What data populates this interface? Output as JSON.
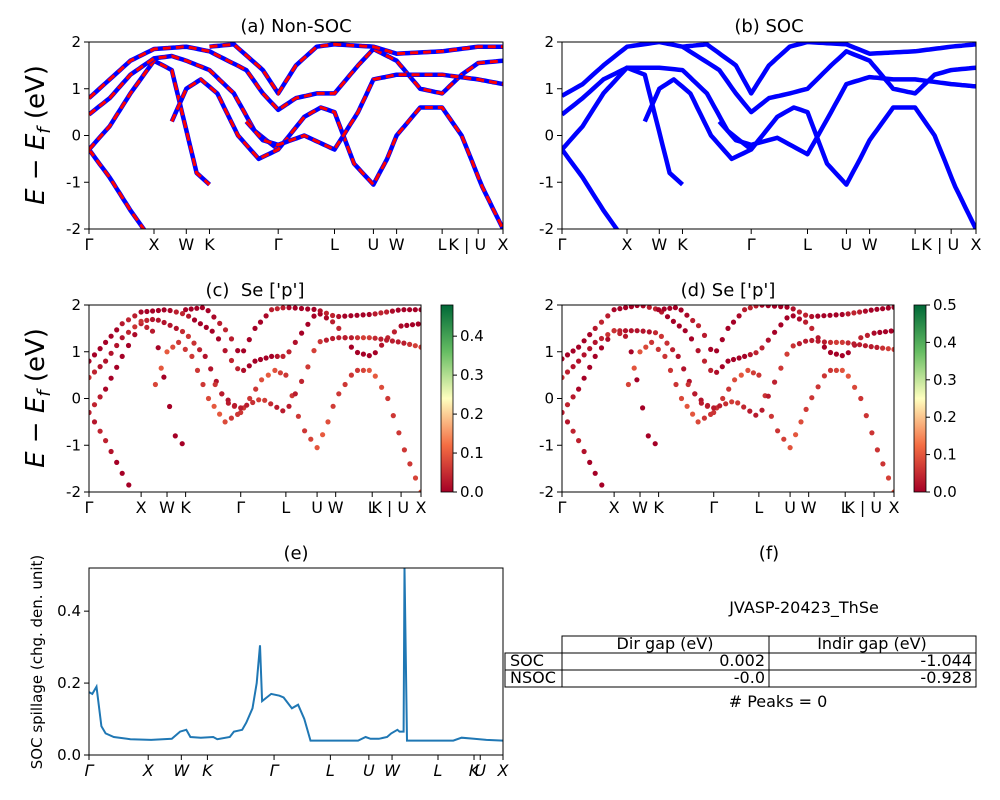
{
  "figure": {
    "id_text": "JVASP-20423_ThSe",
    "peaks_text": "# Peaks = 0"
  },
  "kpath_ticks": {
    "a": [
      {
        "label": "Γ",
        "x": 0
      },
      {
        "label": "X",
        "x": 0.157
      },
      {
        "label": "W",
        "x": 0.235
      },
      {
        "label": "K",
        "x": 0.291
      },
      {
        "label": "Γ",
        "x": 0.457
      },
      {
        "label": "L",
        "x": 0.593
      },
      {
        "label": "U",
        "x": 0.687
      },
      {
        "label": "W",
        "x": 0.743
      },
      {
        "label": "L",
        "x": 0.853
      },
      {
        "label": "K | U",
        "x": 0.94
      },
      {
        "label": "X",
        "x": 1.0
      }
    ],
    "c": [
      {
        "label": "Γ",
        "x": 0
      },
      {
        "label": "X",
        "x": 0.157
      },
      {
        "label": "W",
        "x": 0.235
      },
      {
        "label": "K",
        "x": 0.291
      },
      {
        "label": "Γ",
        "x": 0.457
      },
      {
        "label": "L",
        "x": 0.593
      },
      {
        "label": "U",
        "x": 0.687
      },
      {
        "label": "W",
        "x": 0.743
      },
      {
        "label": "L",
        "x": 0.853
      },
      {
        "label": "K | U",
        "x": 0.94
      },
      {
        "label": "X",
        "x": 1.0
      }
    ],
    "e": [
      {
        "label": "Γ",
        "x": 0
      },
      {
        "label": "X",
        "x": 0.143
      },
      {
        "label": "W",
        "x": 0.223
      },
      {
        "label": "K",
        "x": 0.286
      },
      {
        "label": "Γ",
        "x": 0.447
      },
      {
        "label": "L",
        "x": 0.583
      },
      {
        "label": "U",
        "x": 0.676
      },
      {
        "label": "W",
        "x": 0.732
      },
      {
        "label": "L",
        "x": 0.843
      },
      {
        "label": "K",
        "x": 0.93
      },
      {
        "label": "U",
        "x": 0.945
      },
      {
        "label": "X",
        "x": 1.0
      }
    ]
  },
  "chart_data": [
    {
      "panel": "a",
      "type": "line",
      "title": "(a) Non-SOC",
      "ylabel": "E − E_f (eV)",
      "ylim": [
        -2,
        2
      ],
      "yticks": [
        -2,
        -1,
        0,
        1,
        2
      ],
      "series": [
        {
          "color": "#0000ff",
          "style": "solid"
        },
        {
          "color": "#ff0000",
          "style": "dashed"
        }
      ],
      "bands": [
        [
          [
            0,
            -0.3
          ],
          [
            0.05,
            -0.9
          ],
          [
            0.1,
            -1.6
          ],
          [
            0.14,
            -2.1
          ]
        ],
        [
          [
            0,
            -0.3
          ],
          [
            0.05,
            0.2
          ],
          [
            0.1,
            0.9
          ],
          [
            0.157,
            1.6
          ],
          [
            0.2,
            1.4
          ],
          [
            0.26,
            -0.8
          ],
          [
            0.291,
            -1.05
          ]
        ],
        [
          [
            0,
            0.45
          ],
          [
            0.05,
            0.8
          ],
          [
            0.1,
            1.3
          ],
          [
            0.157,
            1.65
          ],
          [
            0.2,
            1.7
          ],
          [
            0.235,
            1.6
          ],
          [
            0.291,
            1.4
          ],
          [
            0.35,
            0.9
          ],
          [
            0.4,
            0.1
          ],
          [
            0.457,
            -0.3
          ]
        ],
        [
          [
            0,
            0.8
          ],
          [
            0.05,
            1.2
          ],
          [
            0.1,
            1.6
          ],
          [
            0.157,
            1.85
          ],
          [
            0.235,
            1.9
          ],
          [
            0.291,
            1.8
          ],
          [
            0.38,
            1.4
          ],
          [
            0.42,
            0.9
          ],
          [
            0.457,
            0.55
          ],
          [
            0.5,
            0.8
          ],
          [
            0.55,
            0.9
          ],
          [
            0.593,
            0.9
          ],
          [
            0.65,
            1.5
          ],
          [
            0.687,
            1.85
          ],
          [
            0.743,
            1.6
          ],
          [
            0.8,
            1.0
          ],
          [
            0.853,
            0.9
          ],
          [
            0.9,
            1.3
          ],
          [
            0.94,
            1.55
          ],
          [
            1.0,
            1.6
          ]
        ],
        [
          [
            0.291,
            1.9
          ],
          [
            0.35,
            1.95
          ],
          [
            0.42,
            1.4
          ],
          [
            0.457,
            0.9
          ],
          [
            0.5,
            1.5
          ],
          [
            0.55,
            1.9
          ],
          [
            0.593,
            1.95
          ],
          [
            0.687,
            1.9
          ],
          [
            0.743,
            1.75
          ],
          [
            0.853,
            1.8
          ],
          [
            0.94,
            1.9
          ],
          [
            1.0,
            1.9
          ]
        ],
        [
          [
            0.2,
            0.3
          ],
          [
            0.235,
            1.0
          ],
          [
            0.27,
            1.2
          ],
          [
            0.31,
            0.9
          ],
          [
            0.36,
            0.0
          ],
          [
            0.41,
            -0.5
          ],
          [
            0.457,
            -0.3
          ],
          [
            0.52,
            0.4
          ],
          [
            0.56,
            0.6
          ],
          [
            0.593,
            0.5
          ],
          [
            0.64,
            -0.6
          ],
          [
            0.687,
            -1.05
          ],
          [
            0.72,
            -0.5
          ],
          [
            0.743,
            0.0
          ],
          [
            0.8,
            0.6
          ],
          [
            0.853,
            0.6
          ],
          [
            0.9,
            0.0
          ],
          [
            0.95,
            -1.1
          ],
          [
            1.0,
            -2.0
          ]
        ],
        [
          [
            0.38,
            0.3
          ],
          [
            0.42,
            -0.1
          ],
          [
            0.457,
            -0.2
          ],
          [
            0.52,
            0.0
          ],
          [
            0.593,
            -0.3
          ],
          [
            0.65,
            0.5
          ],
          [
            0.687,
            1.2
          ],
          [
            0.743,
            1.3
          ],
          [
            0.8,
            1.3
          ],
          [
            0.853,
            1.3
          ],
          [
            0.94,
            1.2
          ],
          [
            1.0,
            1.1
          ]
        ]
      ]
    },
    {
      "panel": "b",
      "type": "line",
      "title": "(b) SOC",
      "ylim": [
        -2,
        2
      ],
      "yticks": [
        -2,
        -1,
        0,
        1,
        2
      ],
      "series": [
        {
          "color": "#0000ff",
          "style": "solid"
        }
      ],
      "bands": [
        [
          [
            0,
            -0.3
          ],
          [
            0.05,
            -0.9
          ],
          [
            0.1,
            -1.6
          ],
          [
            0.14,
            -2.1
          ]
        ],
        [
          [
            0,
            -0.3
          ],
          [
            0.05,
            0.2
          ],
          [
            0.1,
            0.9
          ],
          [
            0.157,
            1.45
          ],
          [
            0.2,
            1.3
          ],
          [
            0.26,
            -0.8
          ],
          [
            0.291,
            -1.05
          ]
        ],
        [
          [
            0,
            0.45
          ],
          [
            0.05,
            0.8
          ],
          [
            0.1,
            1.2
          ],
          [
            0.157,
            1.45
          ],
          [
            0.2,
            1.45
          ],
          [
            0.235,
            1.45
          ],
          [
            0.291,
            1.4
          ],
          [
            0.35,
            0.9
          ],
          [
            0.4,
            0.1
          ],
          [
            0.457,
            -0.3
          ]
        ],
        [
          [
            0,
            0.85
          ],
          [
            0.05,
            1.1
          ],
          [
            0.1,
            1.5
          ],
          [
            0.157,
            1.9
          ],
          [
            0.235,
            2.0
          ],
          [
            0.291,
            1.9
          ],
          [
            0.38,
            1.4
          ],
          [
            0.42,
            0.9
          ],
          [
            0.457,
            0.5
          ],
          [
            0.5,
            0.8
          ],
          [
            0.55,
            0.9
          ],
          [
            0.593,
            1.0
          ],
          [
            0.65,
            1.5
          ],
          [
            0.687,
            1.8
          ],
          [
            0.743,
            1.6
          ],
          [
            0.8,
            1.0
          ],
          [
            0.853,
            0.9
          ],
          [
            0.9,
            1.3
          ],
          [
            0.94,
            1.4
          ],
          [
            1.0,
            1.45
          ]
        ],
        [
          [
            0.291,
            1.9
          ],
          [
            0.35,
            1.95
          ],
          [
            0.42,
            1.5
          ],
          [
            0.457,
            0.9
          ],
          [
            0.5,
            1.5
          ],
          [
            0.55,
            1.9
          ],
          [
            0.593,
            2.0
          ],
          [
            0.687,
            1.95
          ],
          [
            0.743,
            1.75
          ],
          [
            0.853,
            1.8
          ],
          [
            0.94,
            1.9
          ],
          [
            1.0,
            1.95
          ]
        ],
        [
          [
            0.2,
            0.3
          ],
          [
            0.235,
            1.0
          ],
          [
            0.27,
            1.2
          ],
          [
            0.31,
            0.9
          ],
          [
            0.36,
            0.0
          ],
          [
            0.41,
            -0.5
          ],
          [
            0.457,
            -0.3
          ],
          [
            0.52,
            0.4
          ],
          [
            0.56,
            0.6
          ],
          [
            0.593,
            0.5
          ],
          [
            0.64,
            -0.6
          ],
          [
            0.687,
            -1.05
          ],
          [
            0.72,
            -0.5
          ],
          [
            0.743,
            -0.1
          ],
          [
            0.8,
            0.6
          ],
          [
            0.853,
            0.6
          ],
          [
            0.9,
            0.0
          ],
          [
            0.95,
            -1.1
          ],
          [
            1.0,
            -2.0
          ]
        ],
        [
          [
            0.38,
            0.3
          ],
          [
            0.42,
            -0.1
          ],
          [
            0.457,
            -0.2
          ],
          [
            0.52,
            -0.05
          ],
          [
            0.593,
            -0.4
          ],
          [
            0.65,
            0.5
          ],
          [
            0.687,
            1.1
          ],
          [
            0.743,
            1.25
          ],
          [
            0.8,
            1.2
          ],
          [
            0.853,
            1.2
          ],
          [
            0.94,
            1.1
          ],
          [
            1.0,
            1.05
          ]
        ]
      ]
    },
    {
      "panel": "c",
      "type": "scatter",
      "title": "(c)  Se ['p']",
      "ylabel": "E − E_f (eV)",
      "ylim": [
        -2,
        2
      ],
      "yticks": [
        -2,
        -1,
        0,
        1,
        2
      ],
      "colorbar": {
        "min": 0.0,
        "max": 0.48,
        "ticks": [
          0.0,
          0.1,
          0.2,
          0.3,
          0.4
        ],
        "cmap": "RdYlGn"
      },
      "bands_ref": "a",
      "weights": [
        0.0,
        0.0,
        0.02,
        0.0,
        0.0,
        0.06,
        0.03
      ]
    },
    {
      "panel": "d",
      "type": "scatter",
      "title": "(d) Se ['p']",
      "ylim": [
        -2,
        2
      ],
      "yticks": [
        -2,
        -1,
        0,
        1,
        2
      ],
      "colorbar": {
        "min": 0.0,
        "max": 0.5,
        "ticks": [
          0.0,
          0.1,
          0.2,
          0.3,
          0.4,
          0.5
        ],
        "cmap": "RdYlGn"
      },
      "bands_ref": "b",
      "weights": [
        0.0,
        0.0,
        0.02,
        0.0,
        0.0,
        0.06,
        0.03
      ]
    },
    {
      "panel": "e",
      "type": "line",
      "title": "(e)",
      "ylabel": "SOC spillage (chg. den. unit)",
      "ylim": [
        0,
        0.52
      ],
      "yticks": [
        0.0,
        0.2,
        0.4
      ],
      "color": "#1f77b4",
      "points": [
        [
          0,
          0.175
        ],
        [
          0.008,
          0.17
        ],
        [
          0.018,
          0.19
        ],
        [
          0.03,
          0.08
        ],
        [
          0.04,
          0.06
        ],
        [
          0.06,
          0.05
        ],
        [
          0.1,
          0.044
        ],
        [
          0.15,
          0.042
        ],
        [
          0.2,
          0.045
        ],
        [
          0.22,
          0.065
        ],
        [
          0.235,
          0.07
        ],
        [
          0.245,
          0.05
        ],
        [
          0.27,
          0.048
        ],
        [
          0.3,
          0.05
        ],
        [
          0.31,
          0.044
        ],
        [
          0.34,
          0.05
        ],
        [
          0.35,
          0.065
        ],
        [
          0.37,
          0.07
        ],
        [
          0.38,
          0.09
        ],
        [
          0.395,
          0.13
        ],
        [
          0.405,
          0.2
        ],
        [
          0.413,
          0.305
        ],
        [
          0.418,
          0.15
        ],
        [
          0.44,
          0.17
        ],
        [
          0.46,
          0.165
        ],
        [
          0.47,
          0.16
        ],
        [
          0.49,
          0.13
        ],
        [
          0.505,
          0.14
        ],
        [
          0.52,
          0.1
        ],
        [
          0.535,
          0.04
        ],
        [
          0.6,
          0.04
        ],
        [
          0.65,
          0.04
        ],
        [
          0.668,
          0.05
        ],
        [
          0.68,
          0.045
        ],
        [
          0.7,
          0.045
        ],
        [
          0.72,
          0.05
        ],
        [
          0.73,
          0.06
        ],
        [
          0.745,
          0.07
        ],
        [
          0.75,
          0.065
        ],
        [
          0.76,
          0.065
        ],
        [
          0.762,
          0.52
        ],
        [
          0.768,
          0.04
        ],
        [
          0.8,
          0.04
        ],
        [
          0.84,
          0.04
        ],
        [
          0.88,
          0.04
        ],
        [
          0.9,
          0.048
        ],
        [
          0.93,
          0.045
        ],
        [
          0.96,
          0.042
        ],
        [
          1.0,
          0.04
        ]
      ]
    },
    {
      "panel": "f",
      "type": "table",
      "title": "(f)",
      "columns": [
        "Dir gap (eV)",
        "Indir gap (eV)"
      ],
      "rows": [
        {
          "label": "SOC",
          "dir": "0.002",
          "indir": "-1.044"
        },
        {
          "label": "NSOC",
          "dir": "-0.0",
          "indir": "-0.928"
        }
      ]
    }
  ]
}
